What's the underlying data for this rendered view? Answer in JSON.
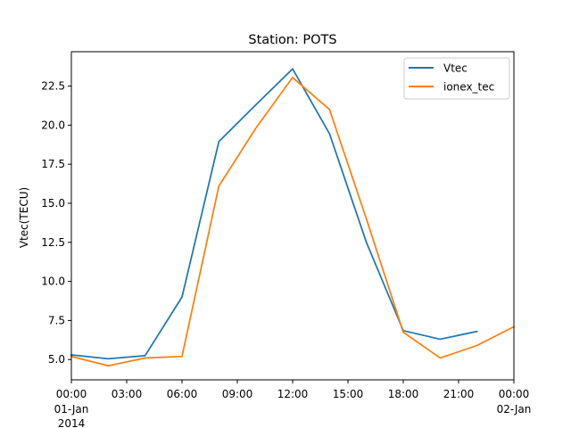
{
  "chart_data": {
    "type": "line",
    "title": "Station: POTS",
    "xlabel": "",
    "ylabel": "Vtec(TECU)",
    "x_unit": "hours from 2014-01-01 00:00",
    "xlim": [
      0,
      24
    ],
    "ylim": [
      3.7,
      24.7
    ],
    "x_ticks": [
      {
        "x": 0,
        "label": "00:00",
        "sub": [
          "01-Jan",
          "2014"
        ]
      },
      {
        "x": 3,
        "label": "03:00",
        "sub": []
      },
      {
        "x": 6,
        "label": "06:00",
        "sub": []
      },
      {
        "x": 9,
        "label": "09:00",
        "sub": []
      },
      {
        "x": 12,
        "label": "12:00",
        "sub": []
      },
      {
        "x": 15,
        "label": "15:00",
        "sub": []
      },
      {
        "x": 18,
        "label": "18:00",
        "sub": []
      },
      {
        "x": 21,
        "label": "21:00",
        "sub": []
      },
      {
        "x": 24,
        "label": "00:00",
        "sub": [
          "02-Jan"
        ]
      }
    ],
    "y_ticks": [
      {
        "y": 5.0,
        "label": "5.0"
      },
      {
        "y": 7.5,
        "label": "7.5"
      },
      {
        "y": 10.0,
        "label": "10.0"
      },
      {
        "y": 12.5,
        "label": "12.5"
      },
      {
        "y": 15.0,
        "label": "15.0"
      },
      {
        "y": 17.5,
        "label": "17.5"
      },
      {
        "y": 20.0,
        "label": "20.0"
      },
      {
        "y": 22.5,
        "label": "22.5"
      }
    ],
    "grid": false,
    "legend_position": "top-right",
    "series": [
      {
        "name": "Vtec",
        "color": "#1f77b4",
        "x": [
          0,
          2,
          4,
          6,
          8,
          10,
          12,
          14,
          16,
          18,
          20,
          22
        ],
        "y": [
          5.3,
          5.05,
          5.25,
          9.0,
          18.95,
          21.3,
          23.6,
          19.45,
          12.5,
          6.85,
          6.3,
          6.8
        ]
      },
      {
        "name": "ionex_tec",
        "color": "#ff7f0e",
        "x": [
          0,
          2,
          4,
          6,
          8,
          10,
          12,
          14,
          16,
          18,
          20,
          22,
          24
        ],
        "y": [
          5.2,
          4.6,
          5.1,
          5.2,
          16.1,
          19.8,
          23.05,
          21.0,
          14.0,
          6.75,
          5.1,
          5.9,
          7.1
        ]
      }
    ]
  }
}
